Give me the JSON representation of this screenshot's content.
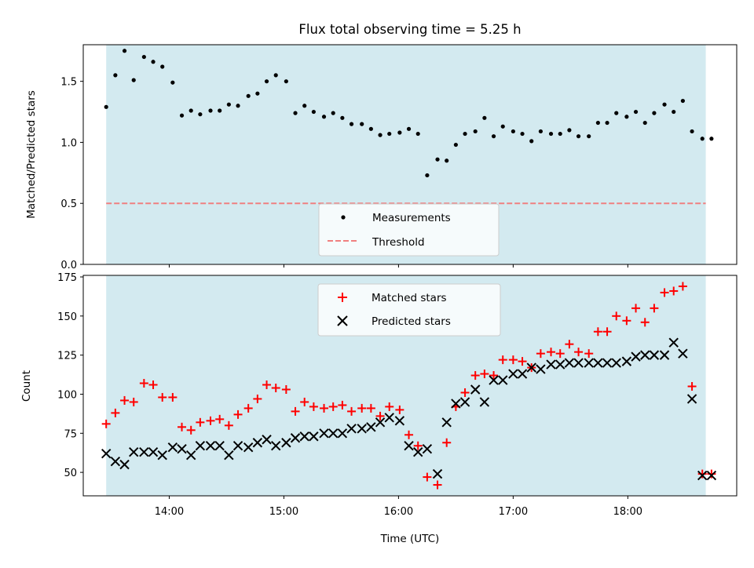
{
  "title": "Flux total observing time = 5.25 h",
  "chart_data": [
    {
      "type": "scatter",
      "ylabel": "Matched/Predicted stars",
      "xlim": [
        13.25,
        18.95
      ],
      "ylim": [
        0,
        1.8
      ],
      "yticks": [
        {
          "v": 0.0,
          "label": "0.0"
        },
        {
          "v": 0.5,
          "label": "0.5"
        },
        {
          "v": 1.0,
          "label": "1.0"
        },
        {
          "v": 1.5,
          "label": "1.5"
        }
      ],
      "xticks": [
        14,
        15,
        16,
        17,
        18
      ],
      "shaded_span": [
        13.45,
        18.68
      ],
      "shade_color": "#d3eaf0",
      "threshold": {
        "label": "Threshold",
        "y": 0.5,
        "color": "#f08080"
      },
      "legend_position": "lower center",
      "series": [
        {
          "name": "Measurements",
          "color": "#000000",
          "x": [
            13.45,
            13.53,
            13.61,
            13.69,
            13.78,
            13.86,
            13.94,
            14.03,
            14.11,
            14.19,
            14.27,
            14.36,
            14.44,
            14.52,
            14.6,
            14.69,
            14.77,
            14.85,
            14.93,
            15.02,
            15.1,
            15.18,
            15.26,
            15.35,
            15.43,
            15.51,
            15.59,
            15.68,
            15.76,
            15.84,
            15.92,
            16.01,
            16.09,
            16.17,
            16.25,
            16.34,
            16.42,
            16.5,
            16.58,
            16.67,
            16.75,
            16.83,
            16.91,
            17.0,
            17.08,
            17.16,
            17.24,
            17.33,
            17.41,
            17.49,
            17.57,
            17.66,
            17.74,
            17.82,
            17.9,
            17.99,
            18.07,
            18.15,
            18.23,
            18.32,
            18.4,
            18.48,
            18.56,
            18.65,
            18.73
          ],
          "y": [
            1.29,
            1.55,
            1.75,
            1.51,
            1.7,
            1.66,
            1.62,
            1.49,
            1.22,
            1.26,
            1.23,
            1.26,
            1.26,
            1.31,
            1.3,
            1.38,
            1.4,
            1.5,
            1.55,
            1.5,
            1.24,
            1.3,
            1.25,
            1.21,
            1.24,
            1.2,
            1.15,
            1.15,
            1.11,
            1.06,
            1.07,
            1.08,
            1.11,
            1.07,
            0.73,
            0.86,
            0.85,
            0.98,
            1.07,
            1.09,
            1.2,
            1.05,
            1.13,
            1.09,
            1.07,
            1.01,
            1.09,
            1.07,
            1.07,
            1.1,
            1.05,
            1.05,
            1.16,
            1.16,
            1.24,
            1.21,
            1.25,
            1.16,
            1.24,
            1.31,
            1.25,
            1.34,
            1.09,
            1.03,
            1.03
          ]
        }
      ]
    },
    {
      "type": "scatter",
      "xlabel": "Time (UTC)",
      "ylabel": "Count",
      "xlim": [
        13.25,
        18.95
      ],
      "ylim": [
        35,
        176
      ],
      "yticks": [
        {
          "v": 50,
          "label": "50"
        },
        {
          "v": 75,
          "label": "75"
        },
        {
          "v": 100,
          "label": "100"
        },
        {
          "v": 125,
          "label": "125"
        },
        {
          "v": 150,
          "label": "150"
        },
        {
          "v": 175,
          "label": "175"
        }
      ],
      "xticks": [
        {
          "v": 14,
          "label": "14:00"
        },
        {
          "v": 15,
          "label": "15:00"
        },
        {
          "v": 16,
          "label": "16:00"
        },
        {
          "v": 17,
          "label": "17:00"
        },
        {
          "v": 18,
          "label": "18:00"
        }
      ],
      "shaded_span": [
        13.45,
        18.68
      ],
      "shade_color": "#d3eaf0",
      "legend_position": "upper center",
      "series": [
        {
          "name": "Matched stars",
          "marker": "plus",
          "color": "#ff0000",
          "x": [
            13.45,
            13.53,
            13.61,
            13.69,
            13.78,
            13.86,
            13.94,
            14.03,
            14.11,
            14.19,
            14.27,
            14.36,
            14.44,
            14.52,
            14.6,
            14.69,
            14.77,
            14.85,
            14.93,
            15.02,
            15.1,
            15.18,
            15.26,
            15.35,
            15.43,
            15.51,
            15.59,
            15.68,
            15.76,
            15.84,
            15.92,
            16.01,
            16.09,
            16.17,
            16.25,
            16.34,
            16.42,
            16.5,
            16.58,
            16.67,
            16.75,
            16.83,
            16.91,
            17.0,
            17.08,
            17.16,
            17.24,
            17.33,
            17.41,
            17.49,
            17.57,
            17.66,
            17.74,
            17.82,
            17.9,
            17.99,
            18.07,
            18.15,
            18.23,
            18.32,
            18.4,
            18.48,
            18.56,
            18.65,
            18.73
          ],
          "y": [
            81,
            88,
            96,
            95,
            107,
            106,
            98,
            98,
            79,
            77,
            82,
            83,
            84,
            80,
            87,
            91,
            97,
            106,
            104,
            103,
            89,
            95,
            92,
            91,
            92,
            93,
            89,
            91,
            91,
            86,
            92,
            90,
            74,
            67,
            47,
            42,
            69,
            92,
            101,
            112,
            113,
            112,
            122,
            122,
            121,
            117,
            126,
            127,
            126,
            132,
            127,
            126,
            140,
            140,
            150,
            147,
            155,
            146,
            155,
            165,
            166,
            169,
            105,
            49,
            49
          ]
        },
        {
          "name": "Predicted stars",
          "marker": "x",
          "color": "#000000",
          "x": [
            13.45,
            13.53,
            13.61,
            13.69,
            13.78,
            13.86,
            13.94,
            14.03,
            14.11,
            14.19,
            14.27,
            14.36,
            14.44,
            14.52,
            14.6,
            14.69,
            14.77,
            14.85,
            14.93,
            15.02,
            15.1,
            15.18,
            15.26,
            15.35,
            15.43,
            15.51,
            15.59,
            15.68,
            15.76,
            15.84,
            15.92,
            16.01,
            16.09,
            16.17,
            16.25,
            16.34,
            16.42,
            16.5,
            16.58,
            16.67,
            16.75,
            16.83,
            16.91,
            17.0,
            17.08,
            17.16,
            17.24,
            17.33,
            17.41,
            17.49,
            17.57,
            17.66,
            17.74,
            17.82,
            17.9,
            17.99,
            18.07,
            18.15,
            18.23,
            18.32,
            18.4,
            18.48,
            18.56,
            18.65,
            18.73
          ],
          "y": [
            62,
            57,
            55,
            63,
            63,
            63,
            61,
            66,
            65,
            61,
            67,
            67,
            67,
            61,
            67,
            66,
            69,
            71,
            67,
            69,
            72,
            73,
            73,
            75,
            75,
            75,
            78,
            78,
            79,
            82,
            85,
            83,
            67,
            63,
            65,
            49,
            82,
            94,
            95,
            103,
            95,
            109,
            109,
            113,
            113,
            117,
            116,
            119,
            119,
            120,
            120,
            120,
            120,
            120,
            120,
            121,
            124,
            125,
            125,
            125,
            133,
            126,
            97,
            48,
            48
          ]
        }
      ]
    }
  ]
}
